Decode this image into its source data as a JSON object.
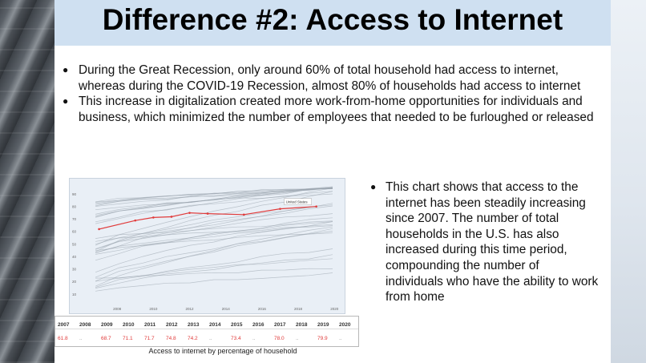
{
  "title": "Difference #2:  Access to Internet",
  "bullets": [
    "During the Great Recession, only around 60% of total household had access to internet, whereas during the COVID-19 Recession, almost 80% of households had access to internet",
    "This increase in digitalization created more work-from-home opportunities for individuals and business, which minimized the number of employees that needed to be furloughed or released"
  ],
  "side_bullet": "This chart shows that access to the internet has been steadily increasing since 2007. The number of total households in the U.S. has also increased during this time period, compounding the number of individuals who have the ability to work from home",
  "chart_data": {
    "type": "line",
    "title": "",
    "series_label": "United States",
    "y_ticks": [
      "90",
      "80",
      "70",
      "60",
      "50",
      "40",
      "30",
      "20",
      "10"
    ],
    "x_ticks": [
      "2008",
      "2010",
      "2012",
      "2014",
      "2016",
      "2018",
      "2020"
    ],
    "xlim": [
      2006,
      2020.3
    ],
    "ylim": [
      6,
      97
    ],
    "highlight_color": "#e03b3b",
    "background_color": "#e9eff6",
    "series": [
      {
        "name": "United States",
        "x": [
          2007,
          2009,
          2010,
          2011,
          2012,
          2013,
          2015,
          2017,
          2019
        ],
        "y": [
          61.8,
          68.7,
          71.1,
          71.7,
          74.8,
          74.2,
          73.4,
          78.0,
          79.9
        ]
      }
    ]
  },
  "table": {
    "headers": [
      "2007",
      "2008",
      "2009",
      "2010",
      "2011",
      "2012",
      "2013",
      "2014",
      "2015",
      "2016",
      "2017",
      "2018",
      "2019",
      "2020"
    ],
    "values": [
      "61.8",
      "..",
      "68.7",
      "71.1",
      "71.7",
      "74.8",
      "74.2",
      "..",
      "73.4",
      "..",
      "78.0",
      "..",
      "79.9",
      ".."
    ]
  },
  "caption": "Access to internet by percentage of household"
}
